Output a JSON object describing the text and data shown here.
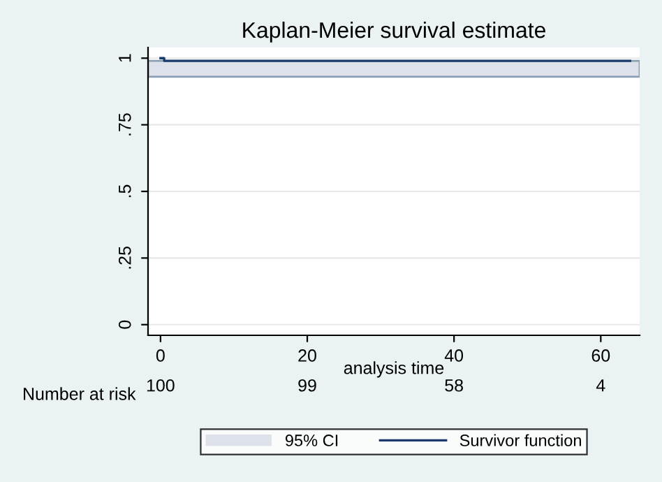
{
  "chart_data": {
    "type": "step",
    "title": "Kaplan-Meier survival estimate",
    "xlabel": "analysis time",
    "xlim": [
      -1.7,
      65.3
    ],
    "xticks": [
      0,
      20,
      40,
      60
    ],
    "ylim": [
      -0.04,
      1.04
    ],
    "yticks": [
      0,
      {
        "value": 0.25,
        "label": ".25"
      },
      {
        "value": 0.5,
        "label": ".5"
      },
      {
        "value": 0.75,
        "label": ".75"
      },
      1
    ],
    "series": [
      {
        "name": "Survivor function",
        "color": "#1a3a6b",
        "x": [
          0,
          0.5,
          64
        ],
        "values": [
          1,
          0.99,
          0.99
        ]
      }
    ],
    "annotations": [
      "Number at risk",
      "100",
      "99",
      "58",
      "4"
    ],
    "bands": [
      {
        "axis": "y",
        "from": 0.93,
        "to": 0.99,
        "label": "95% CI",
        "color": "#dde1e9"
      }
    ],
    "grid": "y",
    "legend": "bottom"
  }
}
